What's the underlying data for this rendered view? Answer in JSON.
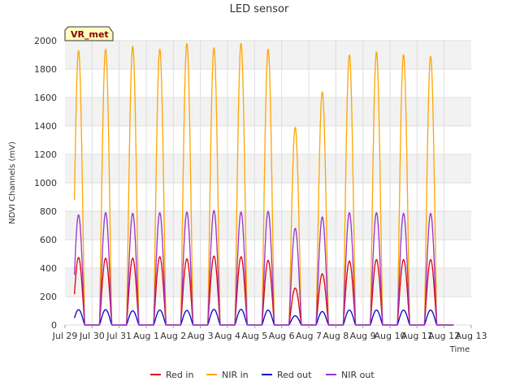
{
  "chart_data": {
    "type": "line",
    "title": "LED sensor",
    "xlabel": "Time",
    "ylabel": "NDVI Channels (mV)",
    "badge": "VR_met",
    "ylim": [
      0,
      2000
    ],
    "yticks": [
      0,
      200,
      400,
      600,
      800,
      1000,
      1200,
      1400,
      1600,
      1800,
      2000
    ],
    "xlim": [
      0,
      15
    ],
    "xticks": [
      {
        "x": 0,
        "label": "Jul 29"
      },
      {
        "x": 1,
        "label": "Jul 30"
      },
      {
        "x": 2,
        "label": "Jul 31"
      },
      {
        "x": 3,
        "label": "Aug 1"
      },
      {
        "x": 4,
        "label": "Aug 2"
      },
      {
        "x": 5,
        "label": "Aug 3"
      },
      {
        "x": 6,
        "label": "Aug 4"
      },
      {
        "x": 7,
        "label": "Aug 5"
      },
      {
        "x": 8,
        "label": "Aug 6"
      },
      {
        "x": 9,
        "label": "Aug 7"
      },
      {
        "x": 10,
        "label": "Aug 8"
      },
      {
        "x": 11,
        "label": "Aug 9"
      },
      {
        "x": 12,
        "label": "Aug 10"
      },
      {
        "x": 13,
        "label": "Aug 11"
      },
      {
        "x": 14,
        "label": "Aug 12"
      },
      {
        "x": 15,
        "label": "Aug 13"
      }
    ],
    "daylight": {
      "start_frac": 0.27,
      "end_frac": 0.73,
      "data_end_day": 14.35
    },
    "series": [
      {
        "name": "Red in",
        "color": "#dd0000",
        "daily_peaks": [
          475,
          470,
          470,
          480,
          465,
          485,
          480,
          455,
          260,
          360,
          450,
          460,
          460,
          460
        ]
      },
      {
        "name": "NIR in",
        "color": "#ffa500",
        "daily_peaks": [
          1930,
          1940,
          1960,
          1940,
          1980,
          1950,
          1980,
          1940,
          1390,
          1640,
          1900,
          1920,
          1900,
          1890
        ]
      },
      {
        "name": "Red out",
        "color": "#0000cc",
        "daily_peaks": [
          108,
          108,
          100,
          105,
          102,
          110,
          110,
          105,
          65,
          95,
          105,
          105,
          105,
          105
        ]
      },
      {
        "name": "NIR out",
        "color": "#9932cc",
        "daily_peaks": [
          775,
          790,
          785,
          790,
          795,
          805,
          795,
          800,
          680,
          760,
          790,
          790,
          785,
          785
        ]
      }
    ]
  }
}
